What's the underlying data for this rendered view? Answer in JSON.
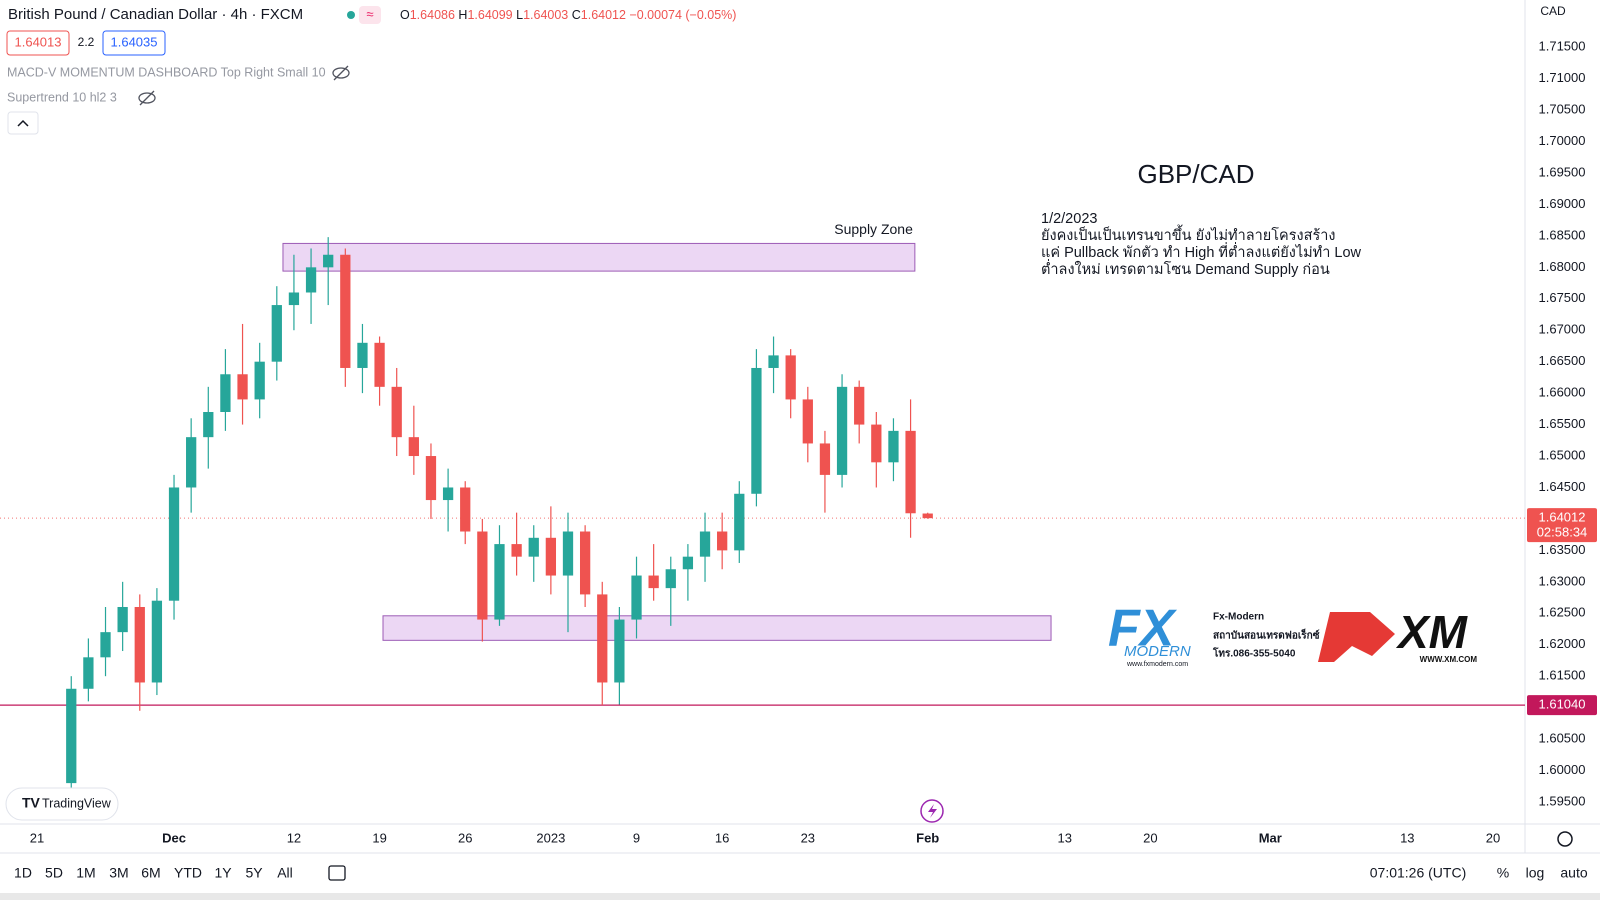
{
  "header": {
    "symbol": "British Pound / Canadian Dollar · 4h · FXCM",
    "ohlc_letters": [
      "O",
      "H",
      "L",
      "C"
    ],
    "change": "−0.00074 (−0.05%)",
    "bid": "1.64013",
    "spread": "2.2",
    "ask": "1.64035",
    "indicators": [
      "MACD-V MOMENTUM DASHBOARD Top Right Small 10",
      "Supertrend 10 hl2 3"
    ],
    "currency": "CAD"
  },
  "branding": {
    "tradingview": "TradingView",
    "fx_logo": "FX",
    "fx_logo_sub": "MODERN",
    "fx_site": "www.fxmodern.com",
    "fx_lines": [
      "Fx-Modern",
      "สถาบันสอนเทรดฟอเร็กซ์",
      "โทร.086-355-5040"
    ],
    "xm_logo": "XM",
    "xm_site": "WWW.XM.COM"
  },
  "toolbar": {
    "periods": [
      "1D",
      "5D",
      "1M",
      "3M",
      "6M",
      "YTD",
      "1Y",
      "5Y",
      "All"
    ],
    "clock": "07:01:26 (UTC)",
    "options": [
      "%",
      "log",
      "auto"
    ]
  },
  "chart_data": {
    "type": "candlestick",
    "title": "GBP/CAD",
    "notes": [
      "1/2/2023",
      "ยังคงเป็นเป็นเทรนขาขึ้น ยังไม่ทำลายโครงสร้าง",
      "แค่ Pullback พักตัว ทำ High ที่ต่ำลงแต่ยังไม่ทำ Low",
      "ต่ำลงใหม่ เทรดตามโซน Demand Supply ก่อน"
    ],
    "x": [
      2,
      3,
      4,
      5,
      6,
      7,
      8,
      9,
      10,
      11,
      12,
      13,
      14,
      15,
      16,
      17,
      18,
      19,
      20,
      21,
      22,
      23,
      24,
      25,
      26,
      27,
      28,
      29,
      30,
      31,
      32,
      33,
      34,
      35,
      36,
      37,
      38,
      39,
      40,
      41,
      42,
      43,
      44,
      45,
      46,
      47,
      48,
      49,
      50,
      51,
      52
    ],
    "open": [
      1.598,
      1.613,
      1.618,
      1.622,
      1.626,
      1.614,
      1.627,
      1.645,
      1.653,
      1.657,
      1.663,
      1.659,
      1.665,
      1.674,
      1.676,
      1.68,
      1.682,
      1.664,
      1.668,
      1.661,
      1.653,
      1.65,
      1.643,
      1.645,
      1.638,
      1.624,
      1.636,
      1.634,
      1.637,
      1.631,
      1.638,
      1.628,
      1.614,
      1.624,
      1.631,
      1.629,
      1.632,
      1.634,
      1.638,
      1.635,
      1.644,
      1.664,
      1.666,
      1.659,
      1.652,
      1.647,
      1.661,
      1.655,
      1.649,
      1.654,
      1.64086
    ],
    "high": [
      1.615,
      1.621,
      1.626,
      1.63,
      1.628,
      1.629,
      1.647,
      1.656,
      1.661,
      1.667,
      1.671,
      1.668,
      1.677,
      1.682,
      1.683,
      1.6848,
      1.683,
      1.671,
      1.669,
      1.664,
      1.658,
      1.652,
      1.648,
      1.646,
      1.64,
      1.639,
      1.641,
      1.639,
      1.642,
      1.641,
      1.639,
      1.63,
      1.626,
      1.634,
      1.636,
      1.634,
      1.636,
      1.641,
      1.641,
      1.646,
      1.667,
      1.669,
      1.667,
      1.661,
      1.654,
      1.663,
      1.662,
      1.657,
      1.656,
      1.659,
      1.64099
    ],
    "low": [
      1.5965,
      1.611,
      1.615,
      1.619,
      1.6095,
      1.612,
      1.624,
      1.641,
      1.648,
      1.654,
      1.655,
      1.656,
      1.662,
      1.67,
      1.671,
      1.674,
      1.661,
      1.66,
      1.658,
      1.65,
      1.647,
      1.64,
      1.638,
      1.636,
      1.6205,
      1.623,
      1.631,
      1.63,
      1.628,
      1.622,
      1.626,
      1.6104,
      1.6105,
      1.621,
      1.627,
      1.623,
      1.627,
      1.63,
      1.632,
      1.633,
      1.642,
      1.66,
      1.656,
      1.649,
      1.641,
      1.645,
      1.652,
      1.645,
      1.646,
      1.637,
      1.64003
    ],
    "close": [
      1.613,
      1.618,
      1.622,
      1.626,
      1.614,
      1.627,
      1.645,
      1.653,
      1.657,
      1.663,
      1.659,
      1.665,
      1.674,
      1.676,
      1.68,
      1.682,
      1.664,
      1.668,
      1.661,
      1.653,
      1.65,
      1.643,
      1.645,
      1.638,
      1.624,
      1.636,
      1.634,
      1.637,
      1.631,
      1.638,
      1.628,
      1.614,
      1.624,
      1.631,
      1.629,
      1.632,
      1.634,
      1.638,
      1.635,
      1.644,
      1.664,
      1.666,
      1.659,
      1.652,
      1.647,
      1.661,
      1.655,
      1.649,
      1.654,
      1.6409,
      1.64012
    ],
    "up_color": "#26a69a",
    "down_color": "#ef5350",
    "xlim": [
      -2.16,
      86.87
    ],
    "xticks": [
      {
        "value": 0,
        "label": "21"
      },
      {
        "value": 8,
        "label": "Dec"
      },
      {
        "value": 15,
        "label": "12"
      },
      {
        "value": 20,
        "label": "19"
      },
      {
        "value": 25,
        "label": "26"
      },
      {
        "value": 30,
        "label": "2023"
      },
      {
        "value": 35,
        "label": "9"
      },
      {
        "value": 40,
        "label": "16"
      },
      {
        "value": 45,
        "label": "23"
      },
      {
        "value": 52,
        "label": "Feb"
      },
      {
        "value": 60,
        "label": "13"
      },
      {
        "value": 65,
        "label": "20"
      },
      {
        "value": 72,
        "label": "Mar"
      },
      {
        "value": 80,
        "label": "13"
      },
      {
        "value": 85,
        "label": "20"
      }
    ],
    "ylim": [
      1.5915,
      1.7225
    ],
    "yticks": [
      {
        "value": 1.595,
        "label": "1.59500"
      },
      {
        "value": 1.6,
        "label": "1.60000"
      },
      {
        "value": 1.605,
        "label": "1.60500"
      },
      {
        "value": 1.61,
        "label": "1.61000"
      },
      {
        "value": 1.615,
        "label": "1.61500"
      },
      {
        "value": 1.62,
        "label": "1.62000"
      },
      {
        "value": 1.625,
        "label": "1.62500"
      },
      {
        "value": 1.63,
        "label": "1.63000"
      },
      {
        "value": 1.635,
        "label": "1.63500"
      },
      {
        "value": 1.64,
        "label": "1.64000"
      },
      {
        "value": 1.645,
        "label": "1.64500"
      },
      {
        "value": 1.65,
        "label": "1.65000"
      },
      {
        "value": 1.655,
        "label": "1.65500"
      },
      {
        "value": 1.66,
        "label": "1.66000"
      },
      {
        "value": 1.665,
        "label": "1.66500"
      },
      {
        "value": 1.67,
        "label": "1.67000"
      },
      {
        "value": 1.675,
        "label": "1.67500"
      },
      {
        "value": 1.68,
        "label": "1.68000"
      },
      {
        "value": 1.685,
        "label": "1.68500"
      },
      {
        "value": 1.69,
        "label": "1.69000"
      },
      {
        "value": 1.695,
        "label": "1.69500"
      },
      {
        "value": 1.7,
        "label": "1.70000"
      },
      {
        "value": 1.705,
        "label": "1.70500"
      },
      {
        "value": 1.71,
        "label": "1.71000"
      },
      {
        "value": 1.715,
        "label": "1.71500"
      }
    ],
    "grid": false,
    "zones": [
      {
        "x0": 14.36,
        "x1": 51.25,
        "y0": 1.6794,
        "y1": 1.6838,
        "label": "Supply Zone"
      },
      {
        "x0": 20.2,
        "x1": 59.2,
        "y0": 1.6207,
        "y1": 1.6246
      }
    ],
    "zone_color": "#e6c9f0",
    "zone_border": "#9c5bb5",
    "price_lines": {
      "values": [
        1.64012,
        1.6104
      ],
      "value_labels": [
        "1.64012",
        "1.61040"
      ],
      "colors": [
        "#ef5350",
        "#c2185b"
      ],
      "styles": [
        "dotted",
        "solid"
      ]
    },
    "countdown": "02:58:34"
  }
}
